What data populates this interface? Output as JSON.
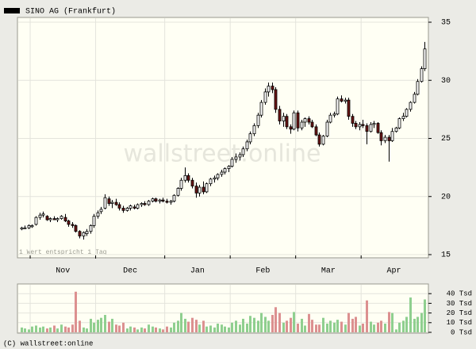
{
  "chart_data": {
    "type": "candlestick",
    "title": "SINO AG (Frankfurt)",
    "note": "1 Wert entspricht 1 Tag",
    "watermark": "wallstreet:online",
    "copyright": "(C) wallstreet:online",
    "up_color": "#ffffff",
    "down_color": "#6b1414",
    "volume_up_color": "#8fcf8f",
    "volume_down_color": "#dc9090",
    "xlim": [
      -1,
      112
    ],
    "xgrid": [
      2.5,
      20.5,
      39.5,
      57.5,
      75.5,
      93.5
    ],
    "xticks": [
      {
        "value": 11.5,
        "label": "Nov"
      },
      {
        "value": 30,
        "label": "Dec"
      },
      {
        "value": 48.5,
        "label": "Jan"
      },
      {
        "value": 66.5,
        "label": "Feb"
      },
      {
        "value": 84.5,
        "label": "Mar"
      },
      {
        "value": 102.5,
        "label": "Apr"
      }
    ],
    "ylim": [
      15,
      35
    ],
    "yticks": [
      15,
      20,
      25,
      30,
      35
    ],
    "volume_ylim": [
      0,
      50
    ],
    "volume_ticks": [
      {
        "value": 0,
        "label": "0 Tsd"
      },
      {
        "value": 10,
        "label": "10 Tsd"
      },
      {
        "value": 20,
        "label": "20 Tsd"
      },
      {
        "value": 30,
        "label": "30 Tsd"
      },
      {
        "value": 40,
        "label": "40 Tsd"
      }
    ],
    "ohlc": [
      [
        17.2,
        17.4,
        17.1,
        17.3
      ],
      [
        17.3,
        17.5,
        17.2,
        17.3
      ],
      [
        17.3,
        17.6,
        17.2,
        17.5
      ],
      [
        17.4,
        17.6,
        17.3,
        17.5
      ],
      [
        17.6,
        18.3,
        17.5,
        18.2
      ],
      [
        18.2,
        18.6,
        18.0,
        18.4
      ],
      [
        18.4,
        18.7,
        18.2,
        18.5
      ],
      [
        18.3,
        18.4,
        17.9,
        18.0
      ],
      [
        18.0,
        18.2,
        17.8,
        18.1
      ],
      [
        18.1,
        18.3,
        18.0,
        18.0
      ],
      [
        18.0,
        18.2,
        17.8,
        18.1
      ],
      [
        18.1,
        18.4,
        18.0,
        18.3
      ],
      [
        18.2,
        18.5,
        17.8,
        17.9
      ],
      [
        17.9,
        18.0,
        17.4,
        17.6
      ],
      [
        17.6,
        17.8,
        17.3,
        17.5
      ],
      [
        17.5,
        17.6,
        16.9,
        17.0
      ],
      [
        17.0,
        17.1,
        16.4,
        16.6
      ],
      [
        16.6,
        17.0,
        16.3,
        16.9
      ],
      [
        16.8,
        17.2,
        16.6,
        17.0
      ],
      [
        17.0,
        17.6,
        16.8,
        17.5
      ],
      [
        17.5,
        18.5,
        17.3,
        18.3
      ],
      [
        18.3,
        18.8,
        18.1,
        18.6
      ],
      [
        18.7,
        19.1,
        18.5,
        18.9
      ],
      [
        19.0,
        20.2,
        18.9,
        19.9
      ],
      [
        19.8,
        20.0,
        19.2,
        19.4
      ],
      [
        19.4,
        19.7,
        19.0,
        19.5
      ],
      [
        19.5,
        19.8,
        19.2,
        19.3
      ],
      [
        19.3,
        19.5,
        18.8,
        19.0
      ],
      [
        19.0,
        19.2,
        18.6,
        18.8
      ],
      [
        18.8,
        19.1,
        18.7,
        19.0
      ],
      [
        19.0,
        19.3,
        18.8,
        19.2
      ],
      [
        19.1,
        19.3,
        18.9,
        19.0
      ],
      [
        19.0,
        19.4,
        18.9,
        19.3
      ],
      [
        19.3,
        19.5,
        19.1,
        19.4
      ],
      [
        19.4,
        19.6,
        19.2,
        19.3
      ],
      [
        19.3,
        19.7,
        19.2,
        19.6
      ],
      [
        19.6,
        19.9,
        19.5,
        19.8
      ],
      [
        19.8,
        19.9,
        19.5,
        19.6
      ],
      [
        19.6,
        19.8,
        19.4,
        19.7
      ],
      [
        19.7,
        19.9,
        19.5,
        19.6
      ],
      [
        19.6,
        19.8,
        19.4,
        19.5
      ],
      [
        19.5,
        19.7,
        19.3,
        19.6
      ],
      [
        19.6,
        20.2,
        19.5,
        20.1
      ],
      [
        20.1,
        20.8,
        20.0,
        20.7
      ],
      [
        20.7,
        21.6,
        20.5,
        21.4
      ],
      [
        21.4,
        22.5,
        21.2,
        21.8
      ],
      [
        21.8,
        22.0,
        21.2,
        21.4
      ],
      [
        21.4,
        21.6,
        20.7,
        20.9
      ],
      [
        20.9,
        21.2,
        19.9,
        20.3
      ],
      [
        20.3,
        21.0,
        20.0,
        20.8
      ],
      [
        20.8,
        21.3,
        20.2,
        20.4
      ],
      [
        20.4,
        21.2,
        20.3,
        21.1
      ],
      [
        21.1,
        21.6,
        20.9,
        21.5
      ],
      [
        21.5,
        21.8,
        21.2,
        21.6
      ],
      [
        21.6,
        22.0,
        21.4,
        21.9
      ],
      [
        21.9,
        22.3,
        21.7,
        22.1
      ],
      [
        22.1,
        22.5,
        21.9,
        22.4
      ],
      [
        22.4,
        22.7,
        22.1,
        22.6
      ],
      [
        22.6,
        23.4,
        22.5,
        23.2
      ],
      [
        23.2,
        23.7,
        22.9,
        23.4
      ],
      [
        23.4,
        23.8,
        23.1,
        23.6
      ],
      [
        23.6,
        24.3,
        23.4,
        24.1
      ],
      [
        24.1,
        24.9,
        23.9,
        24.7
      ],
      [
        24.7,
        25.6,
        24.5,
        25.4
      ],
      [
        25.4,
        26.3,
        25.2,
        26.1
      ],
      [
        26.1,
        27.2,
        25.9,
        27.0
      ],
      [
        27.0,
        28.3,
        26.8,
        28.1
      ],
      [
        28.1,
        29.3,
        27.9,
        29.0
      ],
      [
        29.0,
        29.8,
        28.6,
        29.5
      ],
      [
        29.5,
        29.8,
        28.9,
        29.2
      ],
      [
        29.2,
        29.4,
        27.2,
        27.5
      ],
      [
        27.5,
        27.8,
        26.2,
        26.5
      ],
      [
        26.5,
        27.2,
        26.0,
        26.9
      ],
      [
        26.9,
        27.1,
        25.8,
        26.0
      ],
      [
        26.0,
        26.2,
        25.4,
        25.8
      ],
      [
        25.8,
        27.4,
        25.7,
        27.2
      ],
      [
        27.2,
        27.4,
        25.6,
        25.9
      ],
      [
        25.9,
        26.6,
        25.7,
        26.4
      ],
      [
        26.4,
        26.8,
        26.0,
        26.7
      ],
      [
        26.7,
        26.9,
        26.2,
        26.4
      ],
      [
        26.4,
        26.6,
        25.9,
        26.0
      ],
      [
        26.0,
        26.2,
        25.2,
        25.3
      ],
      [
        25.3,
        25.5,
        24.3,
        24.5
      ],
      [
        24.5,
        25.3,
        24.4,
        25.2
      ],
      [
        25.2,
        26.6,
        25.1,
        26.4
      ],
      [
        26.4,
        27.2,
        26.3,
        27.0
      ],
      [
        27.0,
        27.3,
        26.8,
        27.1
      ],
      [
        27.1,
        28.6,
        27.0,
        28.4
      ],
      [
        28.4,
        28.7,
        28.1,
        28.2
      ],
      [
        28.2,
        28.5,
        28.0,
        28.3
      ],
      [
        28.3,
        28.5,
        26.6,
        26.9
      ],
      [
        26.9,
        27.1,
        26.0,
        26.3
      ],
      [
        26.3,
        26.5,
        25.8,
        26.0
      ],
      [
        26.0,
        26.4,
        25.7,
        26.2
      ],
      [
        26.2,
        26.6,
        25.9,
        26.1
      ],
      [
        26.1,
        26.3,
        24.5,
        25.6
      ],
      [
        25.6,
        26.4,
        25.5,
        26.2
      ],
      [
        26.2,
        26.5,
        25.9,
        26.3
      ],
      [
        26.3,
        26.4,
        25.4,
        25.5
      ],
      [
        25.5,
        25.7,
        24.4,
        24.8
      ],
      [
        24.8,
        25.3,
        24.6,
        25.1
      ],
      [
        25.1,
        25.3,
        23.0,
        24.8
      ],
      [
        24.8,
        25.9,
        24.7,
        25.6
      ],
      [
        25.6,
        26.0,
        25.5,
        25.9
      ],
      [
        25.9,
        26.8,
        25.8,
        26.7
      ],
      [
        26.7,
        27.2,
        26.5,
        26.9
      ],
      [
        26.9,
        27.6,
        26.8,
        27.5
      ],
      [
        27.5,
        28.2,
        27.3,
        28.1
      ],
      [
        28.1,
        29.0,
        28.0,
        28.8
      ],
      [
        28.8,
        30.1,
        28.7,
        29.9
      ],
      [
        29.9,
        31.2,
        29.8,
        31.0
      ],
      [
        31.0,
        33.3,
        30.8,
        32.7
      ]
    ],
    "volume": [
      5,
      4,
      3,
      6,
      7,
      5,
      6,
      4,
      5,
      7,
      4,
      8,
      6,
      5,
      8,
      42,
      12,
      5,
      4,
      14,
      10,
      13,
      15,
      18,
      11,
      14,
      8,
      7,
      10,
      4,
      6,
      5,
      3,
      5,
      4,
      8,
      6,
      5,
      4,
      3,
      6,
      5,
      10,
      12,
      20,
      14,
      11,
      15,
      13,
      8,
      12,
      6,
      7,
      5,
      9,
      8,
      6,
      5,
      10,
      12,
      8,
      14,
      9,
      17,
      15,
      12,
      20,
      16,
      12,
      18,
      26,
      20,
      10,
      12,
      15,
      21,
      9,
      14,
      7,
      19,
      13,
      8,
      8,
      15,
      9,
      12,
      10,
      13,
      11,
      8,
      20,
      14,
      16,
      7,
      9,
      33,
      11,
      8,
      10,
      12,
      9,
      21,
      20,
      3,
      10,
      12,
      16,
      36,
      14,
      16,
      20,
      34
    ]
  }
}
